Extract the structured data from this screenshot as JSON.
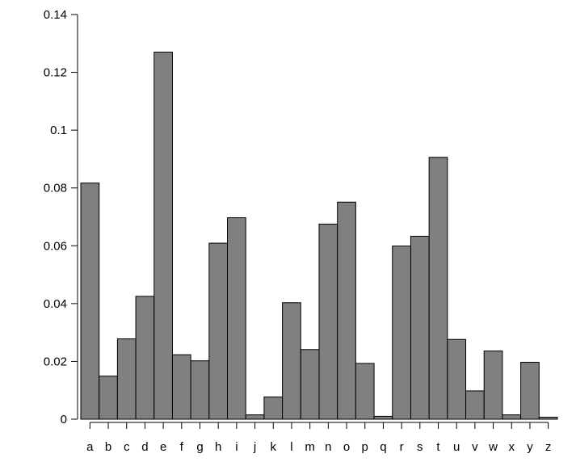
{
  "chart_data": {
    "type": "bar",
    "title": "",
    "xlabel": "",
    "ylabel": "",
    "categories": [
      "a",
      "b",
      "c",
      "d",
      "e",
      "f",
      "g",
      "h",
      "i",
      "j",
      "k",
      "l",
      "m",
      "n",
      "o",
      "p",
      "q",
      "r",
      "s",
      "t",
      "u",
      "v",
      "w",
      "x",
      "y",
      "z"
    ],
    "values": [
      0.0817,
      0.0149,
      0.0278,
      0.0425,
      0.127,
      0.0223,
      0.0202,
      0.0609,
      0.0697,
      0.0015,
      0.0077,
      0.0403,
      0.0241,
      0.0675,
      0.0751,
      0.0193,
      0.001,
      0.0599,
      0.0633,
      0.0906,
      0.0276,
      0.0098,
      0.0236,
      0.0015,
      0.0197,
      0.0007
    ],
    "ylim": [
      0,
      0.14
    ],
    "yticks": [
      0,
      0.02,
      0.04,
      0.06,
      0.08,
      0.1,
      0.12,
      0.14
    ],
    "ytick_labels": [
      "0",
      "0.02",
      "0.04",
      "0.06",
      "0.08",
      "0.1",
      "0.12",
      "0.14"
    ],
    "grid": false,
    "legend": "none",
    "bar_color": "#808080",
    "edge_color": "#000000"
  }
}
